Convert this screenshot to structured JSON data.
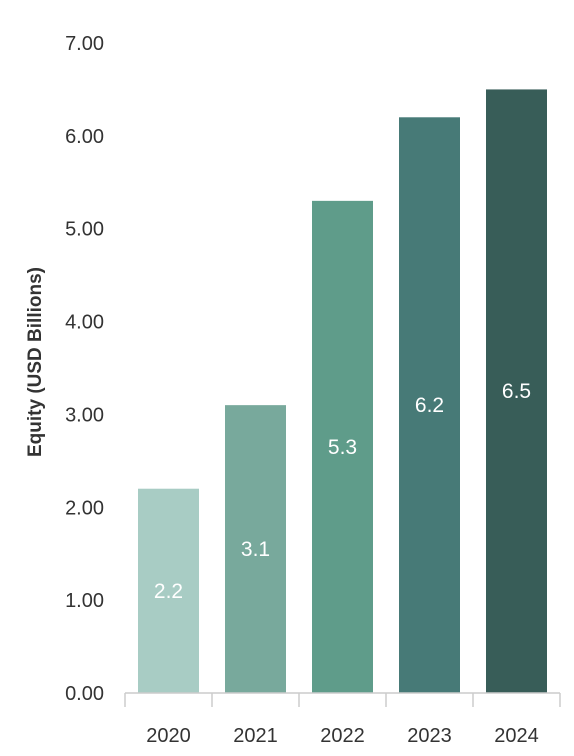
{
  "chart_data": {
    "type": "bar",
    "title": "",
    "xlabel": "",
    "ylabel": "Equity (USD Billions)",
    "categories": [
      "2020",
      "2021",
      "2022",
      "2023",
      "2024"
    ],
    "values": [
      2.2,
      3.1,
      5.3,
      6.2,
      6.5
    ],
    "data_labels": [
      "2.2",
      "3.1",
      "5.3",
      "6.2",
      "6.5"
    ],
    "ylim": [
      0,
      7
    ],
    "y_ticks": [
      0,
      1,
      2,
      3,
      4,
      5,
      6,
      7
    ],
    "y_tick_labels": [
      "0.00",
      "1.00",
      "2.00",
      "3.00",
      "4.00",
      "5.00",
      "6.00",
      "7.00"
    ],
    "grid": false,
    "legend": "none",
    "colors": [
      "#a8ccc4",
      "#78a99c",
      "#5f9c8a",
      "#477a77",
      "#385d58"
    ]
  }
}
